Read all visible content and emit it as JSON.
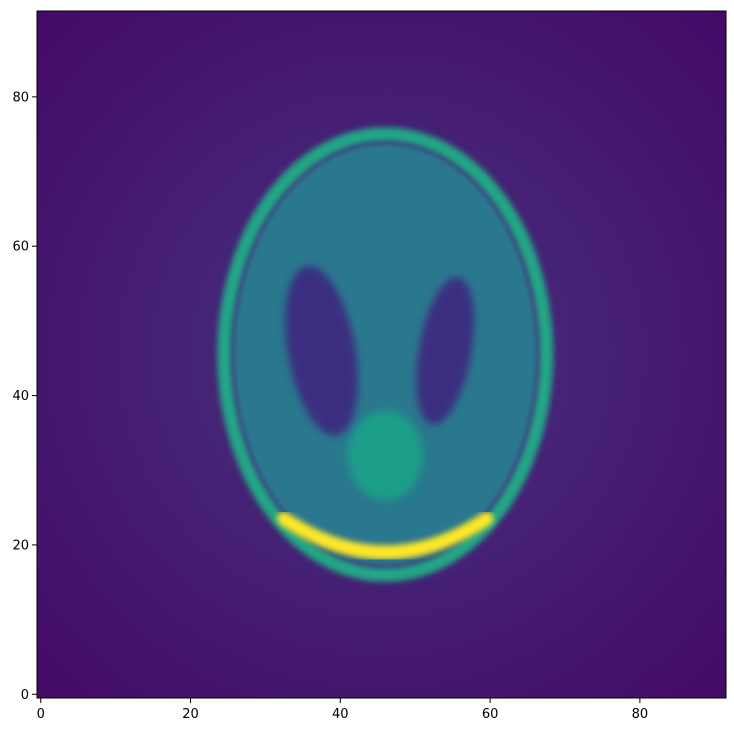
{
  "chart_data": {
    "type": "heatmap",
    "title": "",
    "xlabel": "",
    "ylabel": "",
    "grid": false,
    "legend": "none",
    "image_shape": [
      92,
      92
    ],
    "xlim": [
      -0.5,
      91.5
    ],
    "ylim": [
      91.5,
      -0.5
    ],
    "x_ticks": [
      0,
      20,
      40,
      60,
      80
    ],
    "y_ticks": [
      0,
      20,
      40,
      60,
      80
    ],
    "x_tick_labels": [
      "0",
      "20",
      "40",
      "60",
      "80"
    ],
    "y_tick_labels": [
      "0",
      "20",
      "40",
      "60",
      "80"
    ],
    "colormap": "viridis",
    "colors": {
      "background": "#440a68",
      "outer_ring": "#21a685",
      "top_arc": "#fde725",
      "interior": "#2a788e",
      "dark_ellipses": "#3b2f80",
      "bright_blob": "#1f9e89"
    },
    "features": [
      {
        "name": "outer-ellipse",
        "cx": 46,
        "cy": 45.5,
        "rx": 21.5,
        "ry": 29.5
      },
      {
        "name": "top-bright-arc",
        "cx": 46,
        "cy": 18,
        "rx": 13,
        "ry": 3
      },
      {
        "name": "upper-blob",
        "cx": 46,
        "cy": 32,
        "rx": 5,
        "ry": 6
      },
      {
        "name": "left-dark-ellipse",
        "cx": 37.5,
        "cy": 46,
        "rx": 4.5,
        "ry": 11.5,
        "rotate": -10
      },
      {
        "name": "right-dark-ellipse",
        "cx": 54,
        "cy": 46,
        "rx": 3.5,
        "ry": 10,
        "rotate": 10
      }
    ]
  }
}
